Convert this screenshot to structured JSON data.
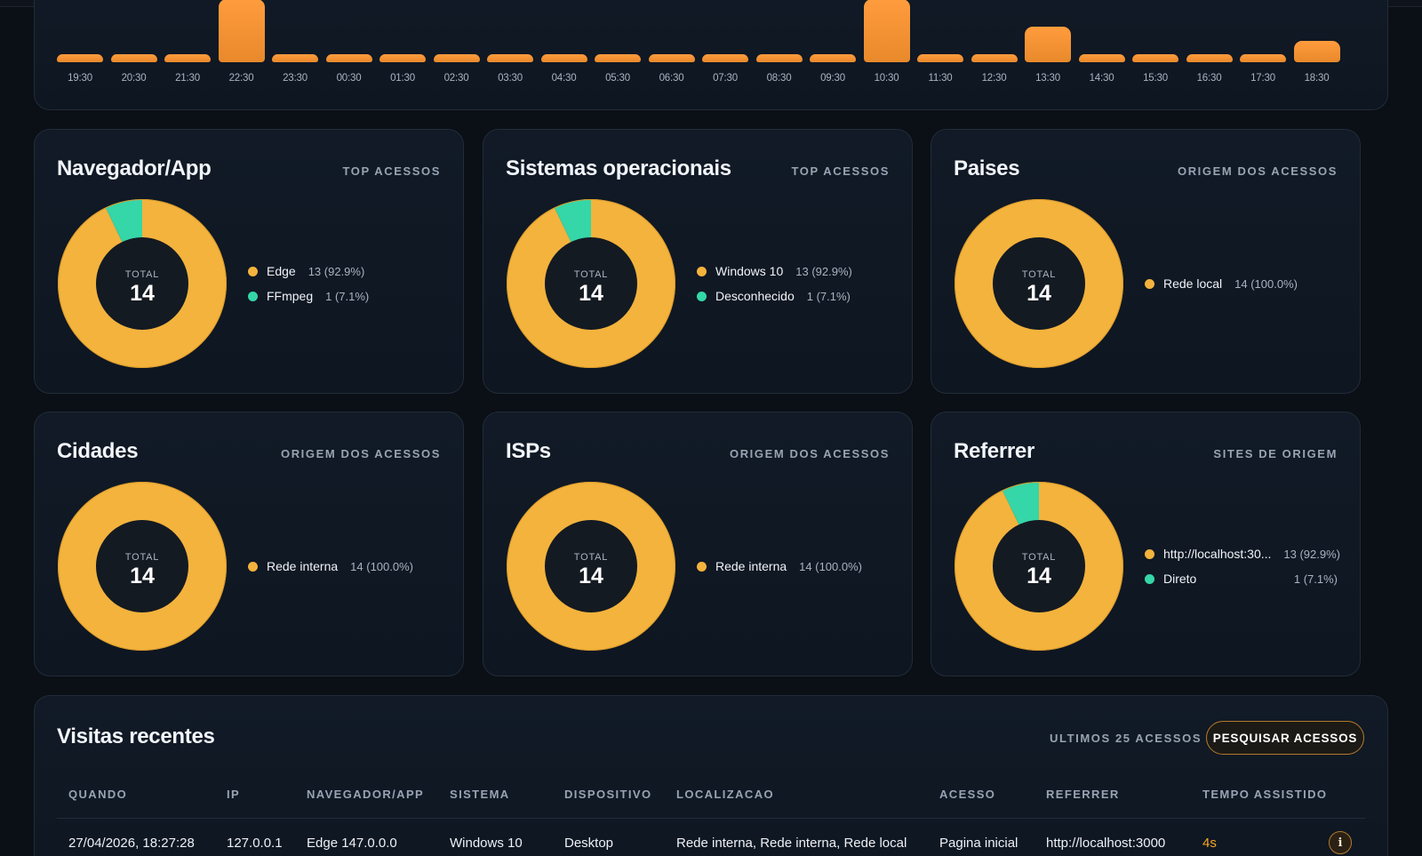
{
  "colors": {
    "primary": "#f3b33d",
    "secondary": "#35d6a8",
    "accent": "#f58a2e",
    "donut_hole": "#141a22"
  },
  "timeline": {
    "chart_data": {
      "type": "bar",
      "categories": [
        "19:30",
        "20:30",
        "21:30",
        "22:30",
        "23:30",
        "00:30",
        "01:30",
        "02:30",
        "03:30",
        "04:30",
        "05:30",
        "06:30",
        "07:30",
        "08:30",
        "09:30",
        "10:30",
        "11:30",
        "12:30",
        "13:30",
        "14:30",
        "15:30",
        "16:30",
        "17:30",
        "18:30"
      ],
      "values": [
        0,
        0,
        0,
        4,
        0,
        0,
        0,
        0,
        0,
        0,
        0,
        0,
        0,
        0,
        0,
        4,
        0,
        0,
        2,
        0,
        0,
        0,
        0,
        1
      ]
    }
  },
  "cards": [
    {
      "title": "Navegador/App",
      "subtitle": "TOP ACESSOS",
      "total_label": "TOTAL",
      "total": "14",
      "chart_data": {
        "type": "pie",
        "labels": [
          "Edge",
          "FFmpeg"
        ],
        "values": [
          13,
          1
        ]
      },
      "legend": [
        {
          "label": "Edge",
          "value": "13 (92.9%)",
          "color": "#f3b33d"
        },
        {
          "label": "FFmpeg",
          "value": "1 (7.1%)",
          "color": "#35d6a8"
        }
      ]
    },
    {
      "title": "Sistemas operacionais",
      "subtitle": "TOP ACESSOS",
      "total_label": "TOTAL",
      "total": "14",
      "chart_data": {
        "type": "pie",
        "labels": [
          "Windows 10",
          "Desconhecido"
        ],
        "values": [
          13,
          1
        ]
      },
      "legend": [
        {
          "label": "Windows 10",
          "value": "13 (92.9%)",
          "color": "#f3b33d"
        },
        {
          "label": "Desconhecido",
          "value": "1 (7.1%)",
          "color": "#35d6a8"
        }
      ]
    },
    {
      "title": "Paises",
      "subtitle": "ORIGEM DOS ACESSOS",
      "total_label": "TOTAL",
      "total": "14",
      "chart_data": {
        "type": "pie",
        "labels": [
          "Rede local"
        ],
        "values": [
          14
        ]
      },
      "legend": [
        {
          "label": "Rede local",
          "value": "14 (100.0%)",
          "color": "#f3b33d"
        }
      ]
    },
    {
      "title": "Cidades",
      "subtitle": "ORIGEM DOS ACESSOS",
      "total_label": "TOTAL",
      "total": "14",
      "chart_data": {
        "type": "pie",
        "labels": [
          "Rede interna"
        ],
        "values": [
          14
        ]
      },
      "legend": [
        {
          "label": "Rede interna",
          "value": "14 (100.0%)",
          "color": "#f3b33d"
        }
      ]
    },
    {
      "title": "ISPs",
      "subtitle": "ORIGEM DOS ACESSOS",
      "total_label": "TOTAL",
      "total": "14",
      "chart_data": {
        "type": "pie",
        "labels": [
          "Rede interna"
        ],
        "values": [
          14
        ]
      },
      "legend": [
        {
          "label": "Rede interna",
          "value": "14 (100.0%)",
          "color": "#f3b33d"
        }
      ]
    },
    {
      "title": "Referrer",
      "subtitle": "SITES DE ORIGEM",
      "total_label": "TOTAL",
      "total": "14",
      "chart_data": {
        "type": "pie",
        "labels": [
          "http://localhost:30...",
          "Direto"
        ],
        "values": [
          13,
          1
        ]
      },
      "legend": [
        {
          "label": "http://localhost:30...",
          "value": "13 (92.9%)",
          "color": "#f3b33d",
          "align": "right"
        },
        {
          "label": "Direto",
          "value": "1 (7.1%)",
          "color": "#35d6a8",
          "align": "right"
        }
      ]
    }
  ],
  "recent": {
    "title": "Visitas recentes",
    "subtitle": "ULTIMOS 25 ACESSOS",
    "search_button": "PESQUISAR ACESSOS",
    "columns": [
      "QUANDO",
      "IP",
      "NAVEGADOR/APP",
      "SISTEMA",
      "DISPOSITIVO",
      "LOCALIZACAO",
      "ACESSO",
      "REFERRER",
      "TEMPO ASSISTIDO"
    ],
    "rows": [
      [
        "27/04/2026, 18:27:28",
        "127.0.0.1",
        "Edge 147.0.0.0",
        "Windows 10",
        "Desktop",
        "Rede interna, Rede interna, Rede local",
        "Pagina inicial",
        "http://localhost:3000",
        "4s"
      ]
    ],
    "info_glyph": "i"
  }
}
